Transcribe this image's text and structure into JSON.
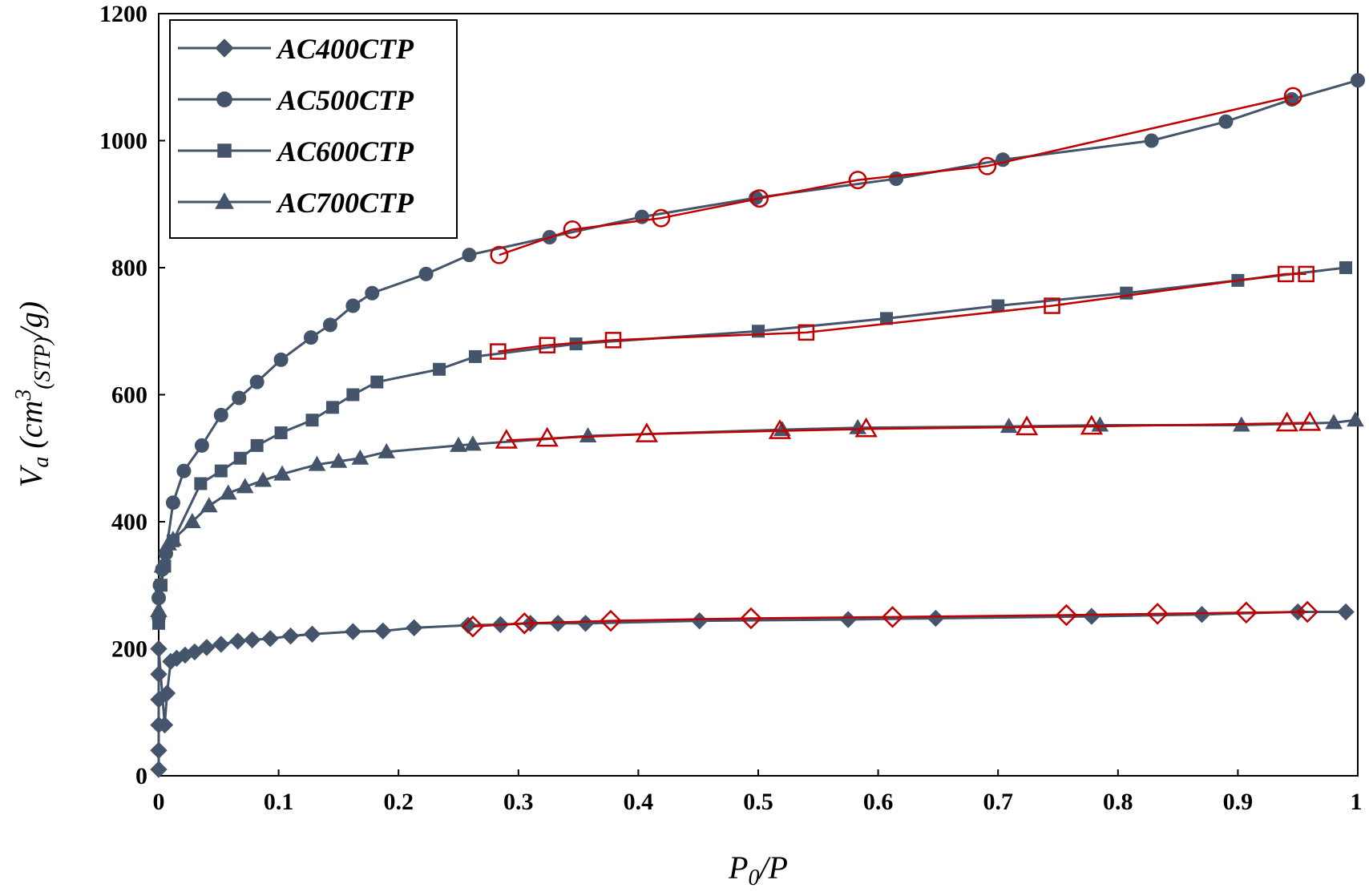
{
  "chart_data": {
    "type": "line",
    "xlabel_main": "P",
    "xlabel_sub": "0",
    "xlabel_tail": "/P",
    "ylabel_main": "V",
    "ylabel_sub": "a",
    "ylabel_open": " (cm",
    "ylabel_sup": "3",
    "ylabel_sub2": "(STP)",
    "ylabel_tail": "/g)",
    "xlim": [
      0,
      1
    ],
    "ylim": [
      0,
      1200
    ],
    "xticks": [
      0,
      0.1,
      0.2,
      0.3,
      0.4,
      0.5,
      0.6,
      0.7,
      0.8,
      0.9,
      1
    ],
    "xtick_labels": [
      "0",
      "0.1",
      "0.2",
      "0.3",
      "0.4",
      "0.5",
      "0.6",
      "0.7",
      "0.8",
      "0.9",
      "1"
    ],
    "yticks": [
      0,
      200,
      400,
      600,
      800,
      1000,
      1200
    ],
    "ytick_labels": [
      "0",
      "200",
      "400",
      "600",
      "800",
      "1000",
      "1200"
    ],
    "grid": false,
    "legend_position": "top-left",
    "colors": {
      "series": "#44546a",
      "fit": "#c00000"
    },
    "series": [
      {
        "name": "AC400CTP",
        "marker": "diamond",
        "x": [
          0.0,
          0.0,
          0.0,
          0.0,
          0.0,
          0.0,
          0.005,
          0.007,
          0.01,
          0.015,
          0.022,
          0.03,
          0.04,
          0.052,
          0.066,
          0.078,
          0.093,
          0.11,
          0.128,
          0.162,
          0.187,
          0.213,
          0.258,
          0.285,
          0.31,
          0.333,
          0.356,
          0.451,
          0.575,
          0.648,
          0.778,
          0.87,
          0.95,
          0.99
        ],
        "y": [
          10,
          40,
          80,
          120,
          160,
          200,
          80,
          130,
          180,
          185,
          190,
          195,
          202,
          207,
          212,
          214,
          216,
          220,
          223,
          227,
          228,
          233,
          237,
          238,
          240,
          240,
          240,
          244,
          246,
          248,
          251,
          254,
          258,
          258
        ]
      },
      {
        "name": "AC500CTP",
        "marker": "circle",
        "x": [
          0.0,
          0.0,
          0.001,
          0.003,
          0.006,
          0.012,
          0.021,
          0.036,
          0.052,
          0.067,
          0.082,
          0.102,
          0.127,
          0.143,
          0.162,
          0.178,
          0.223,
          0.259,
          0.326,
          0.403,
          0.498,
          0.615,
          0.704,
          0.828,
          0.89,
          0.945,
          1.0
        ],
        "y": [
          250,
          280,
          300,
          325,
          350,
          430,
          480,
          520,
          568,
          595,
          620,
          655,
          690,
          710,
          740,
          760,
          790,
          820,
          848,
          880,
          910,
          940,
          970,
          1000,
          1030,
          1065,
          1095
        ]
      },
      {
        "name": "AC600CTP",
        "marker": "square",
        "x": [
          0.0,
          0.002,
          0.005,
          0.012,
          0.035,
          0.052,
          0.068,
          0.082,
          0.102,
          0.128,
          0.145,
          0.162,
          0.182,
          0.234,
          0.264,
          0.348,
          0.5,
          0.607,
          0.7,
          0.807,
          0.9,
          0.99
        ],
        "y": [
          240,
          300,
          330,
          370,
          460,
          480,
          500,
          520,
          540,
          560,
          580,
          600,
          620,
          640,
          660,
          680,
          700,
          720,
          740,
          760,
          780,
          800
        ]
      },
      {
        "name": "AC700CTP",
        "marker": "triangle",
        "x": [
          0.0,
          0.003,
          0.008,
          0.012,
          0.028,
          0.042,
          0.058,
          0.072,
          0.087,
          0.103,
          0.132,
          0.15,
          0.168,
          0.19,
          0.25,
          0.262,
          0.358,
          0.52,
          0.583,
          0.709,
          0.785,
          0.903,
          0.98,
          0.998
        ],
        "y": [
          260,
          330,
          365,
          372,
          400,
          425,
          445,
          455,
          465,
          475,
          490,
          495,
          500,
          510,
          520,
          522,
          535,
          545,
          548,
          550,
          552,
          552,
          556,
          560
        ]
      }
    ],
    "fits": [
      {
        "marker": "diamond",
        "x": [
          0.262,
          0.305,
          0.377,
          0.494,
          0.612,
          0.757,
          0.833,
          0.907,
          0.958
        ],
        "y": [
          235,
          240,
          244,
          248,
          250,
          253,
          255,
          257,
          258
        ]
      },
      {
        "marker": "circle",
        "x": [
          0.284,
          0.345,
          0.419,
          0.501,
          0.583,
          0.691,
          0.946
        ],
        "y": [
          820,
          860,
          878,
          909,
          938,
          960,
          1070
        ]
      },
      {
        "marker": "square",
        "x": [
          0.283,
          0.324,
          0.379,
          0.54,
          0.745,
          0.94,
          0.957
        ],
        "y": [
          668,
          678,
          686,
          698,
          740,
          790,
          790
        ]
      },
      {
        "marker": "triangle",
        "x": [
          0.29,
          0.324,
          0.407,
          0.518,
          0.59,
          0.724,
          0.778,
          0.941,
          0.96
        ],
        "y": [
          528,
          531,
          538,
          543,
          546,
          549,
          550,
          555,
          556
        ]
      }
    ]
  }
}
